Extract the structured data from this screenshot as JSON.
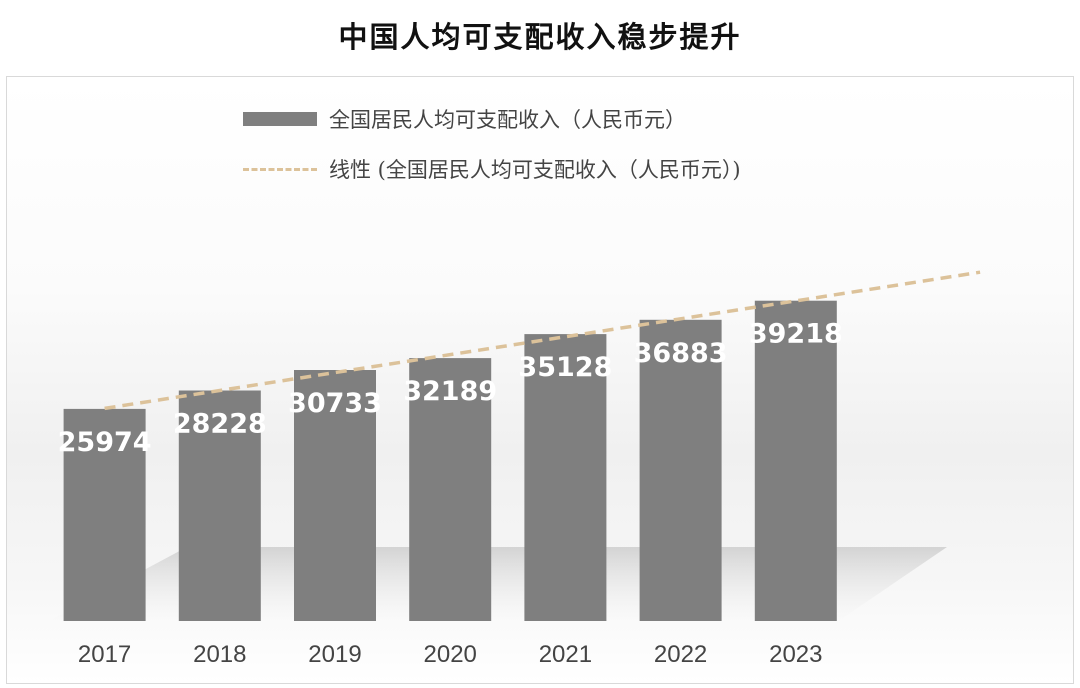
{
  "title": "中国人均可支配收入稳步提升",
  "legend": {
    "bar_label": "全国居民人均可支配收入（人民币元）",
    "line_label": "线性 (全国居民人均可支配收入（人民币元）)"
  },
  "colors": {
    "bar": "#7f7f7f",
    "trendline": "#dcc29a",
    "data_label": "#ffffff",
    "tick_label": "#444444"
  },
  "chart_data": {
    "type": "bar",
    "title": "中国人均可支配收入稳步提升",
    "xlabel": "",
    "ylabel": "",
    "categories": [
      "2017",
      "2018",
      "2019",
      "2020",
      "2021",
      "2022",
      "2023"
    ],
    "series": [
      {
        "name": "全国居民人均可支配收入（人民币元）",
        "values": [
          25974,
          28228,
          30733,
          32189,
          35128,
          36883,
          39218
        ]
      }
    ],
    "trendline": {
      "name": "线性 (全国居民人均可支配收入（人民币元）)",
      "type": "linear",
      "style": "dashed",
      "forward_periods": 1.6
    },
    "data_labels": true,
    "legend_position": "top",
    "grid": false,
    "y_axis_visible": false
  }
}
